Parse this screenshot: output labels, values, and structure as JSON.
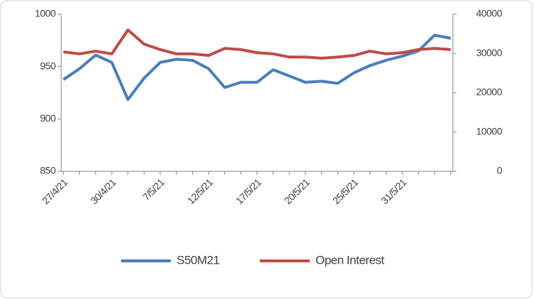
{
  "chart_data": {
    "type": "line",
    "categories": [
      "27/4/21",
      null,
      null,
      "30/4/21",
      null,
      null,
      "7/5/21",
      null,
      null,
      "12/5/21",
      null,
      null,
      "17/5/21",
      null,
      null,
      "20/5/21",
      null,
      null,
      "25/5/21",
      null,
      null,
      "31/5/21",
      null,
      null,
      null
    ],
    "series": [
      {
        "name": "S50M21",
        "color": "#4a7ebb",
        "values": [
          937.5,
          948,
          961,
          954,
          918.5,
          939,
          954,
          957,
          956,
          948,
          930,
          935,
          935,
          947,
          941,
          935,
          936,
          934,
          944,
          951,
          956,
          960,
          965,
          980,
          977
        ]
      },
      {
        "name": "Open Interest",
        "color": "#be4b48",
        "axis": "y2",
        "values": [
          30400,
          29900,
          30600,
          29900,
          36000,
          32400,
          31000,
          29900,
          29900,
          29500,
          31300,
          31000,
          30200,
          29900,
          29100,
          29100,
          28800,
          29100,
          29500,
          30600,
          29900,
          30200,
          31000,
          31300,
          31000
        ]
      }
    ],
    "ylim": [
      850,
      1000
    ],
    "yticks": [
      850,
      900,
      950,
      1000
    ],
    "y2lim": [
      0,
      40000
    ],
    "y2ticks": [
      0,
      10000,
      20000,
      30000,
      40000
    ],
    "legend": "bottom"
  }
}
